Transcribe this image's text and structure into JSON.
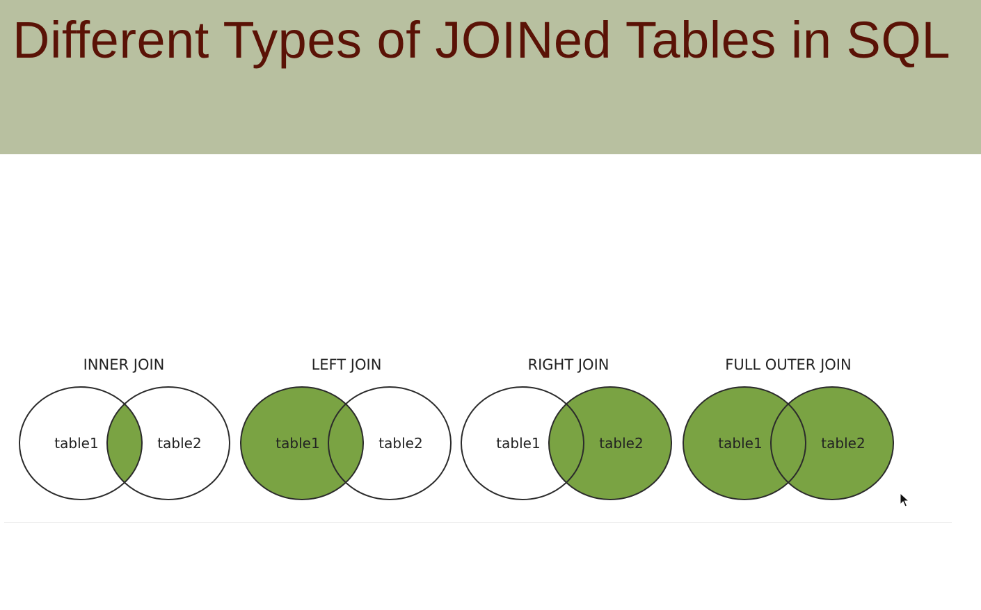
{
  "title": "Different Types of JOINed Tables  in SQL",
  "colors": {
    "title_bar": "#b8c0a0",
    "title_text": "#5a1206",
    "highlight_fill": "#7aa343",
    "outline": "#2b2b2b"
  },
  "joins": [
    {
      "name": "INNER JOIN",
      "left_table": "table1",
      "right_table": "table2",
      "highlight": "intersection"
    },
    {
      "name": "LEFT JOIN",
      "left_table": "table1",
      "right_table": "table2",
      "highlight": "left"
    },
    {
      "name": "RIGHT JOIN",
      "left_table": "table1",
      "right_table": "table2",
      "highlight": "right"
    },
    {
      "name": "FULL OUTER JOIN",
      "left_table": "table1",
      "right_table": "table2",
      "highlight": "both"
    }
  ]
}
